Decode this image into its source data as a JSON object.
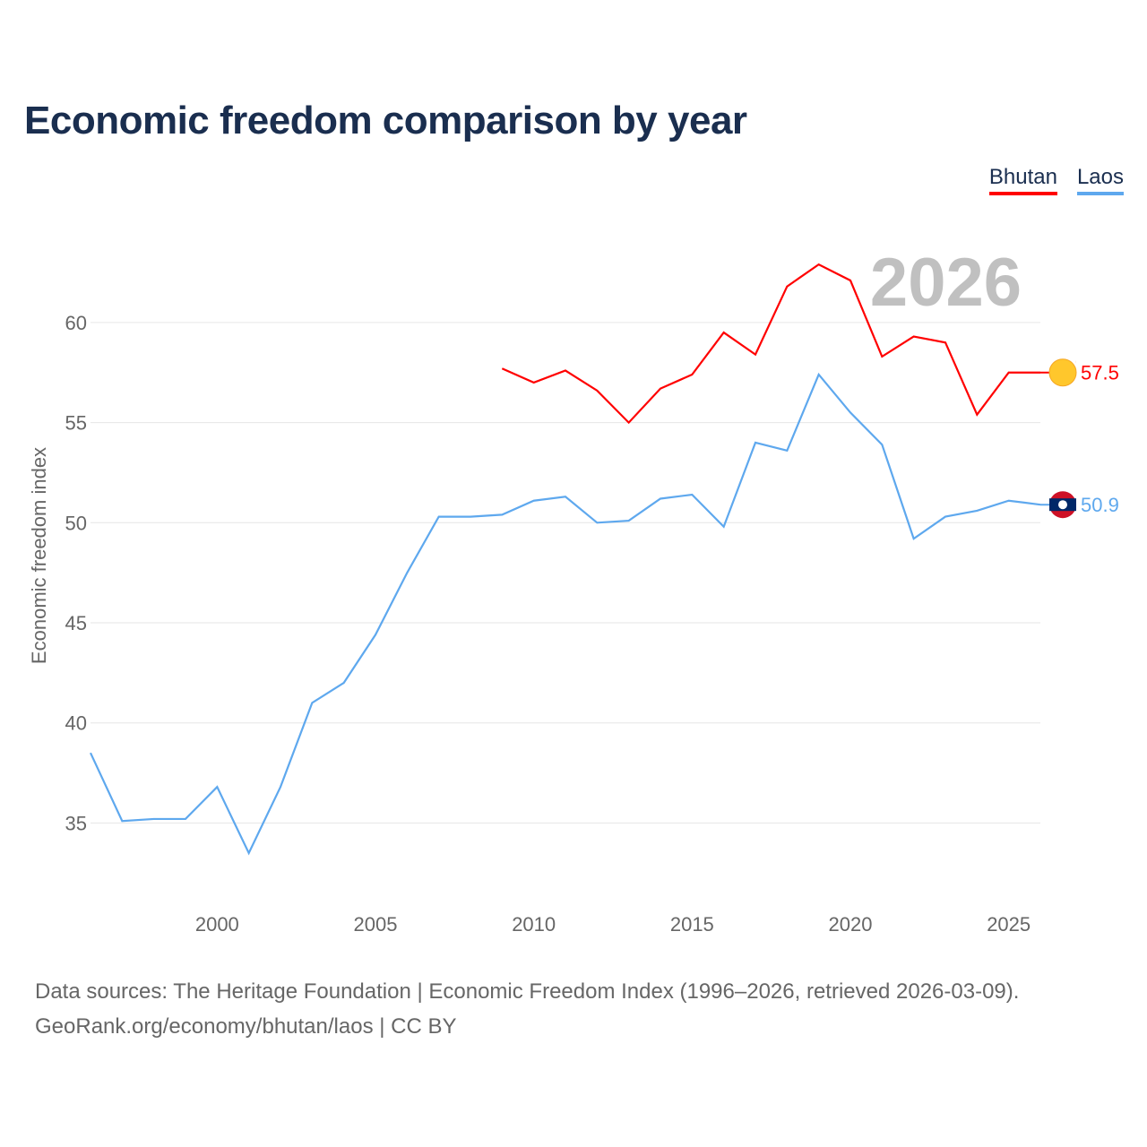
{
  "title": "Economic freedom comparison by year",
  "legend": [
    {
      "label": "Bhutan",
      "color": "#ff0000"
    },
    {
      "label": "Laos",
      "color": "#5ea8ee"
    }
  ],
  "footer": {
    "line1": "Data sources: The Heritage Foundation | Economic Freedom Index (1996–2026, retrieved 2026-03-09).",
    "line2": "GeoRank.org/economy/bhutan/laos | CC BY"
  },
  "chart_data": {
    "type": "line",
    "title": "Economic freedom comparison by year",
    "ylabel": "Economic freedom index",
    "xlabel": "",
    "year_watermark": "2026",
    "xlim": [
      1996,
      2026
    ],
    "ylim": [
      30.9,
      63.8
    ],
    "xticks": [
      "2000",
      "2005",
      "2010",
      "2015",
      "2020",
      "2025"
    ],
    "yticks": [
      "35",
      "40",
      "45",
      "50",
      "55",
      "60"
    ],
    "grid": true,
    "legend_position": "top-right",
    "series": [
      {
        "name": "Bhutan",
        "color": "#ff0000",
        "end_label": "57.5",
        "x": [
          2009,
          2010,
          2011,
          2012,
          2013,
          2014,
          2015,
          2016,
          2017,
          2018,
          2019,
          2020,
          2021,
          2022,
          2023,
          2024,
          2025,
          2026
        ],
        "values": [
          57.7,
          57.0,
          57.6,
          56.6,
          55.0,
          56.7,
          57.4,
          59.5,
          58.4,
          61.8,
          62.9,
          62.1,
          58.3,
          59.3,
          59.0,
          55.4,
          57.5,
          57.5
        ]
      },
      {
        "name": "Laos",
        "color": "#5ea8ee",
        "end_label": "50.9",
        "x": [
          1996,
          1997,
          1998,
          1999,
          2000,
          2001,
          2002,
          2003,
          2004,
          2005,
          2006,
          2007,
          2008,
          2009,
          2010,
          2011,
          2012,
          2013,
          2014,
          2015,
          2016,
          2017,
          2018,
          2019,
          2020,
          2021,
          2022,
          2023,
          2024,
          2025,
          2026
        ],
        "values": [
          38.5,
          35.1,
          35.2,
          35.2,
          36.8,
          33.5,
          36.8,
          41.0,
          42.0,
          44.4,
          47.5,
          50.3,
          50.3,
          50.4,
          51.1,
          51.3,
          50.0,
          50.1,
          51.2,
          51.4,
          49.8,
          54.0,
          53.6,
          57.4,
          55.5,
          53.9,
          49.2,
          50.3,
          50.6,
          51.1,
          50.9
        ]
      }
    ]
  }
}
